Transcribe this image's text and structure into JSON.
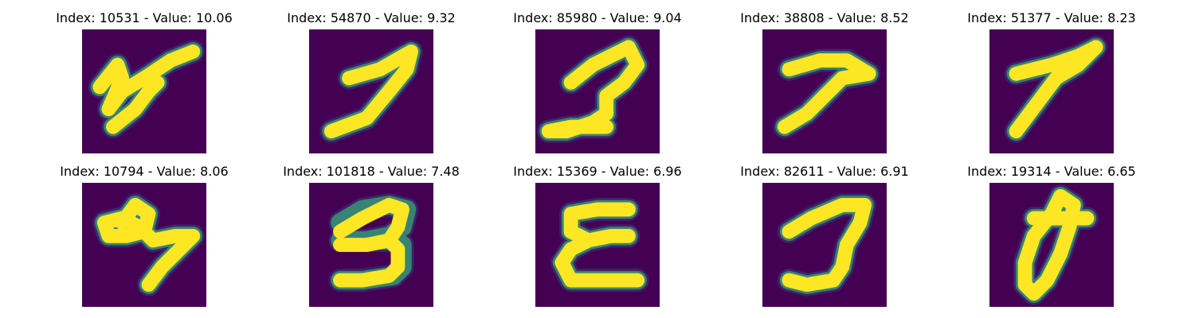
{
  "panels": [
    {
      "index": 10531,
      "value": 10.06,
      "title": "Index: 10531 - Value: 10.06"
    },
    {
      "index": 54870,
      "value": 9.32,
      "title": "Index: 54870 - Value: 9.32"
    },
    {
      "index": 85980,
      "value": 9.04,
      "title": "Index: 85980 - Value: 9.04"
    },
    {
      "index": 38808,
      "value": 8.52,
      "title": "Index: 38808 - Value: 8.52"
    },
    {
      "index": 51377,
      "value": 8.23,
      "title": "Index: 51377 - Value: 8.23"
    },
    {
      "index": 10794,
      "value": 8.06,
      "title": "Index: 10794 - Value: 8.06"
    },
    {
      "index": 101818,
      "value": 7.48,
      "title": "Index: 101818 - Value: 7.48"
    },
    {
      "index": 15369,
      "value": 6.96,
      "title": "Index: 15369 - Value: 6.96"
    },
    {
      "index": 82611,
      "value": 6.91,
      "title": "Index: 82611 - Value: 6.91"
    },
    {
      "index": 19314,
      "value": 6.65,
      "title": "Index: 19314 - Value: 6.65"
    }
  ],
  "colormap": {
    "background": "#440154",
    "stroke": "#fde725",
    "edge": "#35b779"
  }
}
